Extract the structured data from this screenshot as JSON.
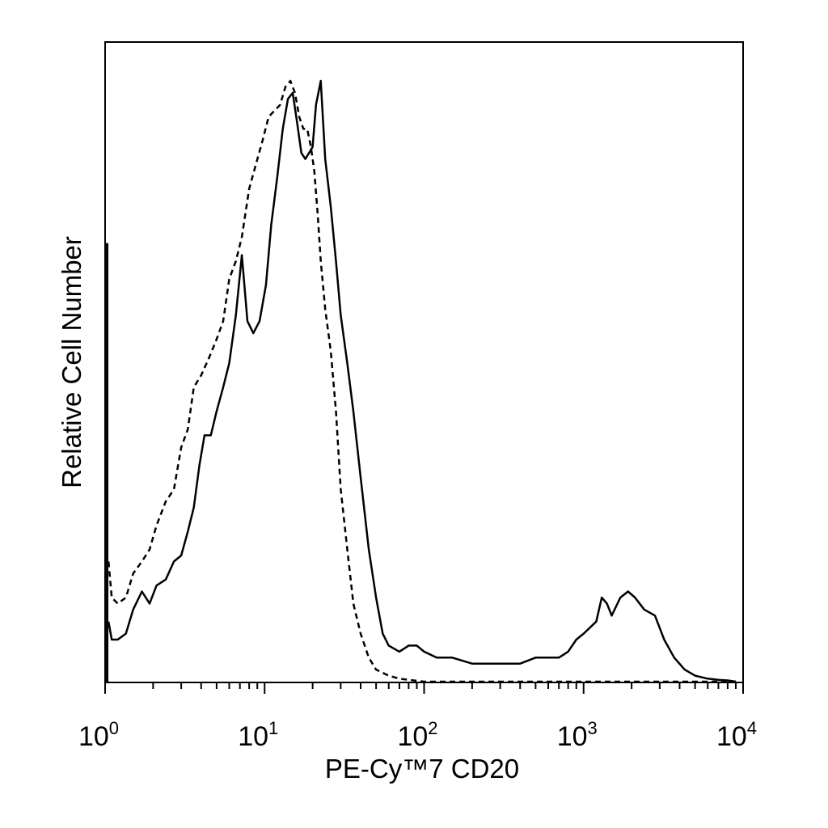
{
  "chart_data": {
    "type": "line",
    "xlabel": "PE-Cy™7 CD20",
    "ylabel": "Relative Cell Number",
    "xscale": "log",
    "xlim": [
      1,
      10000
    ],
    "ylim": [
      0,
      100
    ],
    "grid": false,
    "y_ticks_labeled": false,
    "x_ticks": [
      {
        "value": 1,
        "base": "10",
        "exp": "0"
      },
      {
        "value": 10,
        "base": "10",
        "exp": "1"
      },
      {
        "value": 100,
        "base": "10",
        "exp": "2"
      },
      {
        "value": 1000,
        "base": "10",
        "exp": "3"
      },
      {
        "value": 10000,
        "base": "10",
        "exp": "4"
      }
    ],
    "series": [
      {
        "style": "solid",
        "color": "#000000",
        "points": [
          [
            1.05,
            10
          ],
          [
            1.1,
            7
          ],
          [
            1.2,
            7
          ],
          [
            1.35,
            8
          ],
          [
            1.5,
            12
          ],
          [
            1.7,
            15
          ],
          [
            1.9,
            13
          ],
          [
            2.1,
            16
          ],
          [
            2.4,
            17
          ],
          [
            2.7,
            20
          ],
          [
            3.0,
            21
          ],
          [
            3.3,
            25
          ],
          [
            3.6,
            29
          ],
          [
            3.9,
            36
          ],
          [
            4.2,
            41
          ],
          [
            4.6,
            41
          ],
          [
            5.0,
            45
          ],
          [
            5.5,
            49
          ],
          [
            6.0,
            53
          ],
          [
            6.6,
            61
          ],
          [
            7.2,
            71
          ],
          [
            7.8,
            60
          ],
          [
            8.5,
            58
          ],
          [
            9.3,
            60
          ],
          [
            10.2,
            66
          ],
          [
            11.0,
            76
          ],
          [
            12.0,
            84
          ],
          [
            13.0,
            92
          ],
          [
            14.0,
            97
          ],
          [
            15.0,
            98
          ],
          [
            16.0,
            93
          ],
          [
            17.0,
            88
          ],
          [
            18.0,
            87
          ],
          [
            19.0,
            88
          ],
          [
            20.0,
            89
          ],
          [
            21.0,
            96
          ],
          [
            22.5,
            100
          ],
          [
            24.0,
            87
          ],
          [
            26.0,
            79
          ],
          [
            28.0,
            70
          ],
          [
            30.0,
            61
          ],
          [
            33.0,
            53
          ],
          [
            36.0,
            45
          ],
          [
            40.0,
            34
          ],
          [
            45.0,
            22
          ],
          [
            50.0,
            14
          ],
          [
            55.0,
            8
          ],
          [
            60.0,
            6
          ],
          [
            70.0,
            5
          ],
          [
            80.0,
            6
          ],
          [
            90.0,
            6
          ],
          [
            100.0,
            5
          ],
          [
            120.0,
            4
          ],
          [
            150.0,
            4
          ],
          [
            200.0,
            3
          ],
          [
            300.0,
            3
          ],
          [
            400.0,
            3
          ],
          [
            500.0,
            4
          ],
          [
            600.0,
            4
          ],
          [
            700.0,
            4
          ],
          [
            800.0,
            5
          ],
          [
            900.0,
            7
          ],
          [
            1000.0,
            8
          ],
          [
            1200.0,
            10
          ],
          [
            1300.0,
            14
          ],
          [
            1400.0,
            13
          ],
          [
            1500.0,
            11
          ],
          [
            1700.0,
            14
          ],
          [
            1900.0,
            15
          ],
          [
            2100.0,
            14
          ],
          [
            2400.0,
            12
          ],
          [
            2800.0,
            11
          ],
          [
            3200.0,
            7
          ],
          [
            3700.0,
            4
          ],
          [
            4300.0,
            2
          ],
          [
            5000.0,
            1
          ],
          [
            6000.0,
            0.5
          ],
          [
            7000.0,
            0.3
          ],
          [
            8000.0,
            0.2
          ],
          [
            9000.0,
            0
          ]
        ]
      },
      {
        "style": "dashed",
        "color": "#000000",
        "points": [
          [
            1.05,
            20
          ],
          [
            1.1,
            14
          ],
          [
            1.2,
            13
          ],
          [
            1.35,
            14
          ],
          [
            1.5,
            18
          ],
          [
            1.7,
            20
          ],
          [
            1.9,
            22
          ],
          [
            2.1,
            26
          ],
          [
            2.4,
            30
          ],
          [
            2.7,
            32
          ],
          [
            3.0,
            39
          ],
          [
            3.3,
            42
          ],
          [
            3.6,
            49
          ],
          [
            4.0,
            51
          ],
          [
            4.5,
            54
          ],
          [
            5.0,
            57
          ],
          [
            5.5,
            60
          ],
          [
            6.0,
            67
          ],
          [
            6.6,
            70
          ],
          [
            7.2,
            74
          ],
          [
            8.0,
            82
          ],
          [
            8.8,
            86
          ],
          [
            9.7,
            90
          ],
          [
            10.6,
            94
          ],
          [
            11.5,
            95
          ],
          [
            12.5,
            96
          ],
          [
            13.5,
            99
          ],
          [
            14.5,
            100
          ],
          [
            15.5,
            98
          ],
          [
            16.5,
            94
          ],
          [
            17.5,
            92
          ],
          [
            18.5,
            92
          ],
          [
            19.5,
            89
          ],
          [
            20.5,
            85
          ],
          [
            21.5,
            78
          ],
          [
            22.5,
            70
          ],
          [
            24.0,
            62
          ],
          [
            26.0,
            55
          ],
          [
            28.0,
            45
          ],
          [
            30.0,
            32
          ],
          [
            33.0,
            22
          ],
          [
            36.0,
            13
          ],
          [
            40.0,
            8
          ],
          [
            45.0,
            4
          ],
          [
            50.0,
            2
          ],
          [
            60.0,
            1
          ],
          [
            70.0,
            0.5
          ],
          [
            80.0,
            0.3
          ],
          [
            100.0,
            0
          ],
          [
            1000.0,
            0
          ],
          [
            9000.0,
            0
          ]
        ]
      }
    ]
  }
}
